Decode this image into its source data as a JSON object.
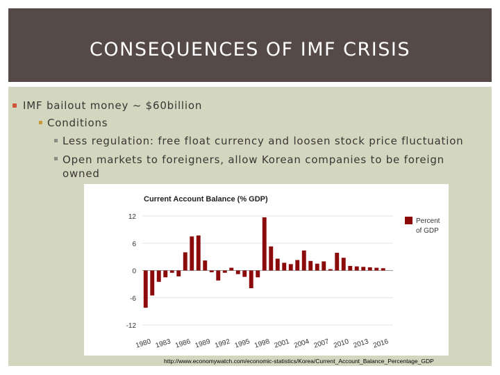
{
  "slide": {
    "title": "CONSEQUENCES OF IMF CRISIS",
    "bullets": {
      "level1": "IMF bailout money ~ $60billion",
      "level2": "Conditions",
      "level3": [
        "Less regulation: free float currency and loosen stock price fluctuation",
        "Open markets to foreigners, allow Korean companies to be foreign owned"
      ]
    },
    "source_url": "http://www.economywatch.com/economic-statistics/Korea/Current_Account_Balance_Percentage_GDP"
  },
  "chart_data": {
    "type": "bar",
    "title": "Current Account Balance (% GDP)",
    "legend": {
      "label_line1": "Percent",
      "label_line2": "of GDP",
      "position": "right"
    },
    "bar_color": "#8b0a0a",
    "ylim": [
      -12,
      12
    ],
    "yticks": [
      12,
      6,
      0,
      -6,
      -12
    ],
    "x_tick_labels": [
      "1980",
      "1983",
      "1986",
      "1989",
      "1992",
      "1995",
      "1998",
      "2001",
      "2004",
      "2007",
      "2010",
      "2013",
      "2016"
    ],
    "x": [
      1980,
      1981,
      1982,
      1983,
      1984,
      1985,
      1986,
      1987,
      1988,
      1989,
      1990,
      1991,
      1992,
      1993,
      1994,
      1995,
      1996,
      1997,
      1998,
      1999,
      2000,
      2001,
      2002,
      2003,
      2004,
      2005,
      2006,
      2007,
      2008,
      2009,
      2010,
      2011,
      2012,
      2013,
      2014,
      2015,
      2016,
      2017
    ],
    "values": [
      -8.2,
      -5.5,
      -2.5,
      -1.5,
      -0.5,
      -1.3,
      4.0,
      7.5,
      7.7,
      2.2,
      -0.4,
      -2.2,
      -0.5,
      0.6,
      -0.8,
      -1.4,
      -3.9,
      -1.5,
      11.7,
      5.3,
      2.6,
      1.7,
      1.4,
      2.3,
      4.4,
      2.1,
      1.5,
      2.0,
      0.3,
      3.9,
      2.8,
      1.0,
      0.9,
      0.8,
      0.7,
      0.6,
      0.5,
      0.0
    ]
  }
}
